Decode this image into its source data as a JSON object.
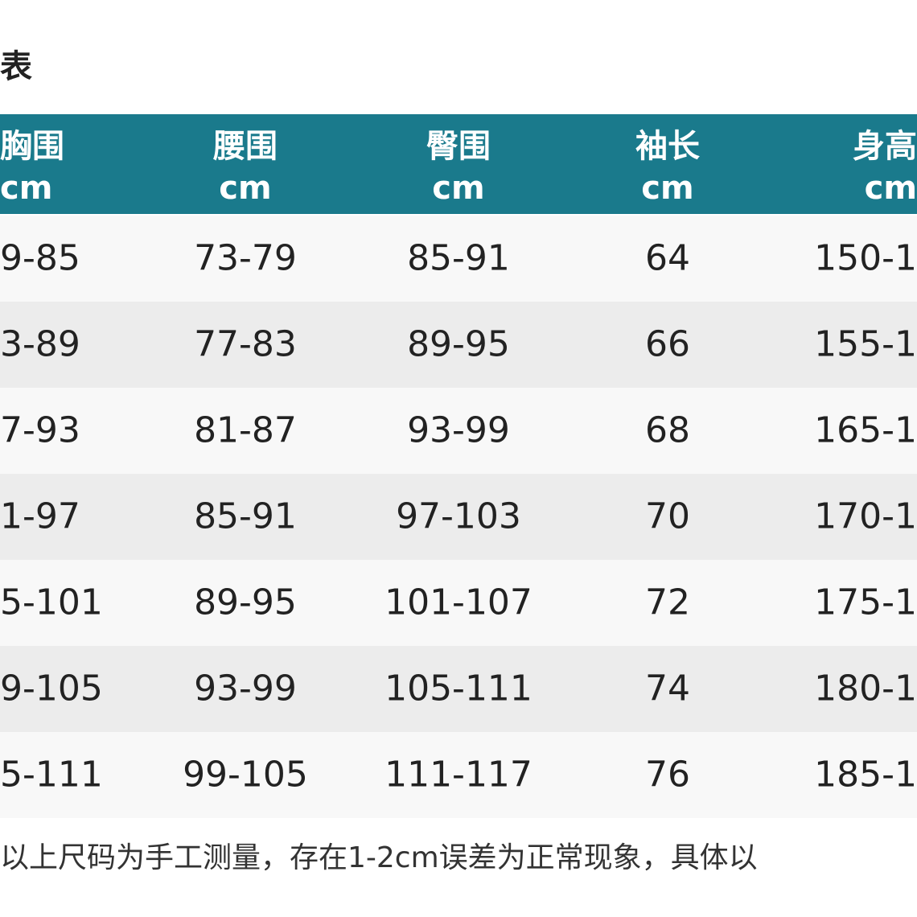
{
  "header": {
    "title": "表"
  },
  "table": {
    "columns": [
      {
        "name": "胸围",
        "unit": "cm"
      },
      {
        "name": "腰围",
        "unit": "cm"
      },
      {
        "name": "臀围",
        "unit": "cm"
      },
      {
        "name": "袖长",
        "unit": "cm"
      },
      {
        "name": "身高",
        "unit": "cm"
      }
    ],
    "rows": [
      [
        "9-85",
        "73-79",
        "85-91",
        "64",
        "150-1"
      ],
      [
        "3-89",
        "77-83",
        "89-95",
        "66",
        "155-1"
      ],
      [
        "7-93",
        "81-87",
        "93-99",
        "68",
        "165-1"
      ],
      [
        "1-97",
        "85-91",
        "97-103",
        "70",
        "170-1"
      ],
      [
        "5-101",
        "89-95",
        "101-107",
        "72",
        "175-1"
      ],
      [
        "9-105",
        "93-99",
        "105-111",
        "74",
        "180-1"
      ],
      [
        "5-111",
        "99-105",
        "111-117",
        "76",
        "185-1"
      ]
    ]
  },
  "footer": {
    "note": "以上尺码为手工测量，存在1-2cm误差为正常现象，具体以"
  }
}
